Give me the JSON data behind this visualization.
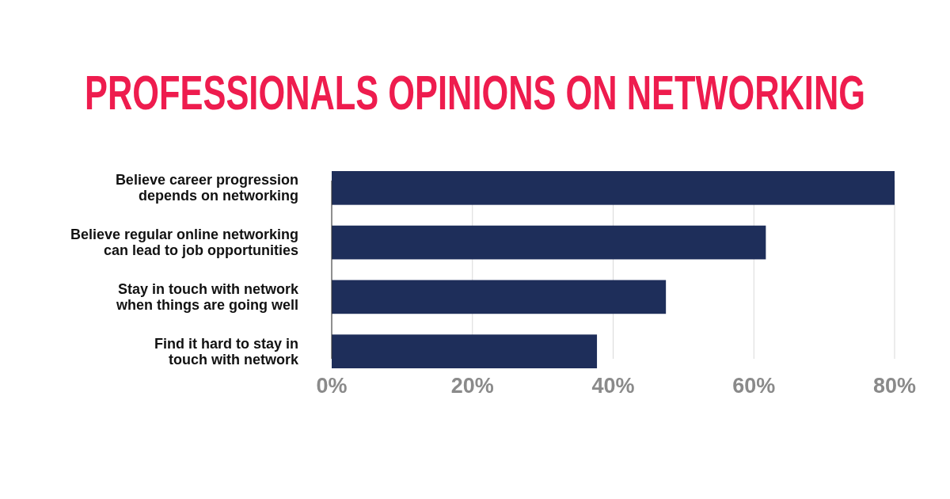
{
  "chart_data": {
    "type": "bar",
    "orientation": "horizontal",
    "title": "PROFESSIONALS OPINIONS ON NETWORKING",
    "categories": [
      "Believe career progression\ndepends on networking",
      "Believe regular online networking\ncan lead to job opportunities",
      "Stay in touch with network\nwhen things are going well",
      "Find it hard to stay in\ntouch with network"
    ],
    "values": [
      80,
      61.7,
      47.5,
      37.7
    ],
    "color": "#1e2e5a",
    "xlim": [
      0,
      80
    ],
    "xticks": [
      {
        "value": 0,
        "label": "0%"
      },
      {
        "value": 20,
        "label": "20%"
      },
      {
        "value": 40,
        "label": "40%"
      },
      {
        "value": 60,
        "label": "60%"
      },
      {
        "value": 80,
        "label": "80%"
      }
    ],
    "grid": "x"
  }
}
